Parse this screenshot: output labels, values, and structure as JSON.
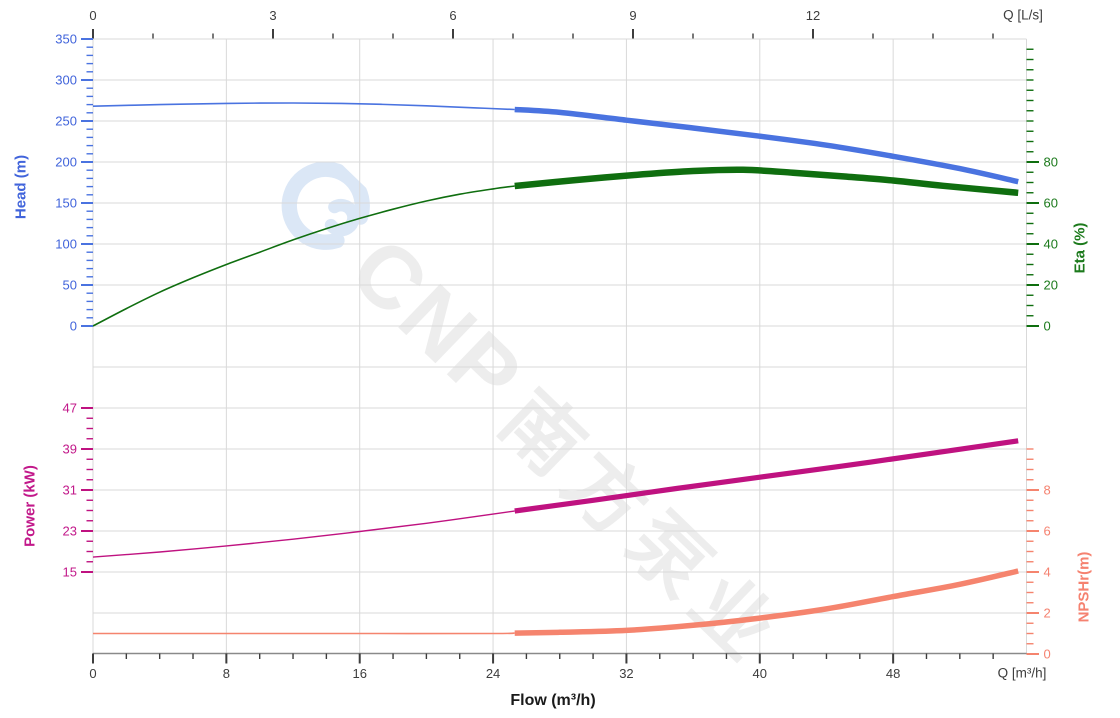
{
  "watermark": {
    "brand": "CNP",
    "cn_text": "南方泵业"
  },
  "colors": {
    "head": "#4a73e0",
    "head_label": "#4164db",
    "eta": "#0f6e0f",
    "eta_label": "#1c7a1c",
    "power": "#bf1280",
    "power_label": "#c2188a",
    "npshr": "#f5846e",
    "npshr_label": "#f58270",
    "grid": "#d9d9d9",
    "axis_line": "#8a8a8a",
    "flow_tick": "#3d3d3d",
    "flow_text": "#3d3d3d"
  },
  "chart_data": {
    "type": "line",
    "title": "",
    "x_axis_bottom": {
      "title": "Flow (m³/h)",
      "unit_label": "Q [m³/h]",
      "range": [
        0,
        56
      ],
      "major_ticks": [
        0,
        8,
        16,
        24,
        32,
        40,
        48
      ],
      "minor_tick_step": 2,
      "minor_tick_max": 54,
      "grid": true
    },
    "x_axis_top": {
      "unit_label": "Q [L/s]",
      "range": [
        0,
        15.55
      ],
      "major_ticks": [
        0,
        3,
        6,
        9,
        12
      ],
      "minor_tick_step": 1,
      "minor_tick_max": 15
    },
    "y_axes": [
      {
        "id": "head",
        "label": "Head (m)",
        "side": "left",
        "panel": "top",
        "range": [
          0,
          350
        ],
        "major_ticks": [
          0,
          50,
          100,
          150,
          200,
          250,
          300,
          350
        ],
        "minor_tick_step": 10,
        "minor_tick_min": 0,
        "minor_tick_max": 350
      },
      {
        "id": "eta",
        "label": "Eta (%)",
        "side": "right",
        "panel": "top",
        "range": [
          0,
          140
        ],
        "major_ticks": [
          0,
          20,
          40,
          60,
          80
        ],
        "minor_tick_step": 5,
        "minor_tick_min": 0,
        "minor_tick_max": 135
      },
      {
        "id": "power",
        "label": "Power (kW)",
        "side": "left",
        "panel": "bottom",
        "range": [
          15,
          47
        ],
        "major_ticks": [
          15,
          23,
          31,
          39,
          47
        ],
        "minor_tick_step": 2,
        "minor_tick_min": 15,
        "minor_tick_max": 47
      },
      {
        "id": "npshr",
        "label": "NPSHr(m)",
        "side": "right",
        "panel": "bottom",
        "range": [
          0,
          10
        ],
        "major_ticks": [
          0,
          2,
          4,
          6,
          8
        ],
        "minor_tick_step": 0.5,
        "minor_tick_min": 0,
        "minor_tick_max": 10
      }
    ],
    "series": [
      {
        "id": "head-curve",
        "axis": "head",
        "color_key": "head",
        "thin": [
          [
            0,
            268
          ],
          [
            4,
            270
          ],
          [
            8,
            271.5
          ],
          [
            12,
            272
          ],
          [
            16,
            271
          ],
          [
            20,
            268.5
          ],
          [
            23,
            266
          ],
          [
            25.3,
            264
          ]
        ],
        "thick": [
          [
            25.3,
            264
          ],
          [
            28,
            260.5
          ],
          [
            32,
            251
          ],
          [
            36,
            241.5
          ],
          [
            40,
            231.5
          ],
          [
            44,
            220.5
          ],
          [
            48,
            207
          ],
          [
            52,
            192
          ],
          [
            55.5,
            176
          ]
        ]
      },
      {
        "id": "eta-curve",
        "axis": "eta",
        "color_key": "eta",
        "thin": [
          [
            0,
            0
          ],
          [
            2,
            8.5
          ],
          [
            4,
            16.5
          ],
          [
            6,
            23.5
          ],
          [
            8,
            30
          ],
          [
            10,
            36
          ],
          [
            12,
            42
          ],
          [
            14,
            47.5
          ],
          [
            16,
            52.5
          ],
          [
            18,
            57
          ],
          [
            20,
            61
          ],
          [
            22,
            64.3
          ],
          [
            24,
            66.9
          ],
          [
            25.3,
            68.3
          ]
        ],
        "thick": [
          [
            25.3,
            68.3
          ],
          [
            29,
            71.2
          ],
          [
            33,
            74
          ],
          [
            36,
            75.6
          ],
          [
            39,
            76.2
          ],
          [
            42,
            74.8
          ],
          [
            45,
            73
          ],
          [
            48,
            71
          ],
          [
            51,
            68.4
          ],
          [
            55.5,
            65
          ]
        ]
      },
      {
        "id": "power-curve",
        "axis": "power",
        "color_key": "power",
        "thin": [
          [
            0,
            17.9
          ],
          [
            4,
            18.9
          ],
          [
            8,
            20.1
          ],
          [
            12,
            21.4
          ],
          [
            16,
            22.9
          ],
          [
            20,
            24.5
          ],
          [
            24,
            26.3
          ],
          [
            25.3,
            26.9
          ]
        ],
        "thick": [
          [
            25.3,
            26.9
          ],
          [
            30,
            29
          ],
          [
            35,
            31.3
          ],
          [
            40,
            33.5
          ],
          [
            45,
            35.7
          ],
          [
            50,
            38
          ],
          [
            55.5,
            40.6
          ]
        ]
      },
      {
        "id": "npshr-curve",
        "axis": "npshr",
        "color_key": "npshr",
        "thin": [
          [
            0,
            1.0
          ],
          [
            8,
            1.0
          ],
          [
            16,
            1.0
          ],
          [
            24,
            1.0
          ],
          [
            25.3,
            1.02
          ]
        ],
        "thick": [
          [
            25.3,
            1.02
          ],
          [
            28,
            1.06
          ],
          [
            32,
            1.15
          ],
          [
            36,
            1.4
          ],
          [
            40,
            1.75
          ],
          [
            44,
            2.2
          ],
          [
            48,
            2.8
          ],
          [
            52,
            3.4
          ],
          [
            55.5,
            4.05
          ]
        ]
      }
    ]
  }
}
